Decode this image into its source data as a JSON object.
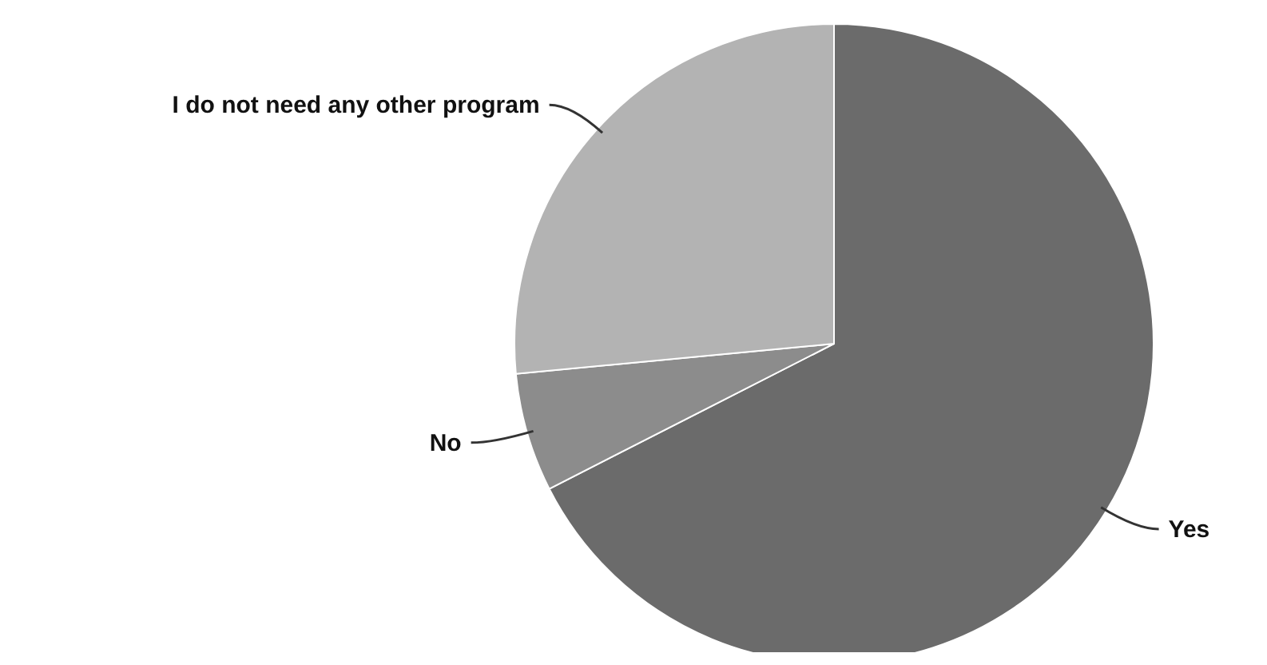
{
  "chart_data": {
    "type": "pie",
    "categories": [
      "Yes",
      "No",
      "I do not need any other program"
    ],
    "values": [
      67.5,
      6,
      26.5
    ],
    "colors": [
      "#6b6b6b",
      "#8c8c8c",
      "#b3b3b3"
    ]
  }
}
